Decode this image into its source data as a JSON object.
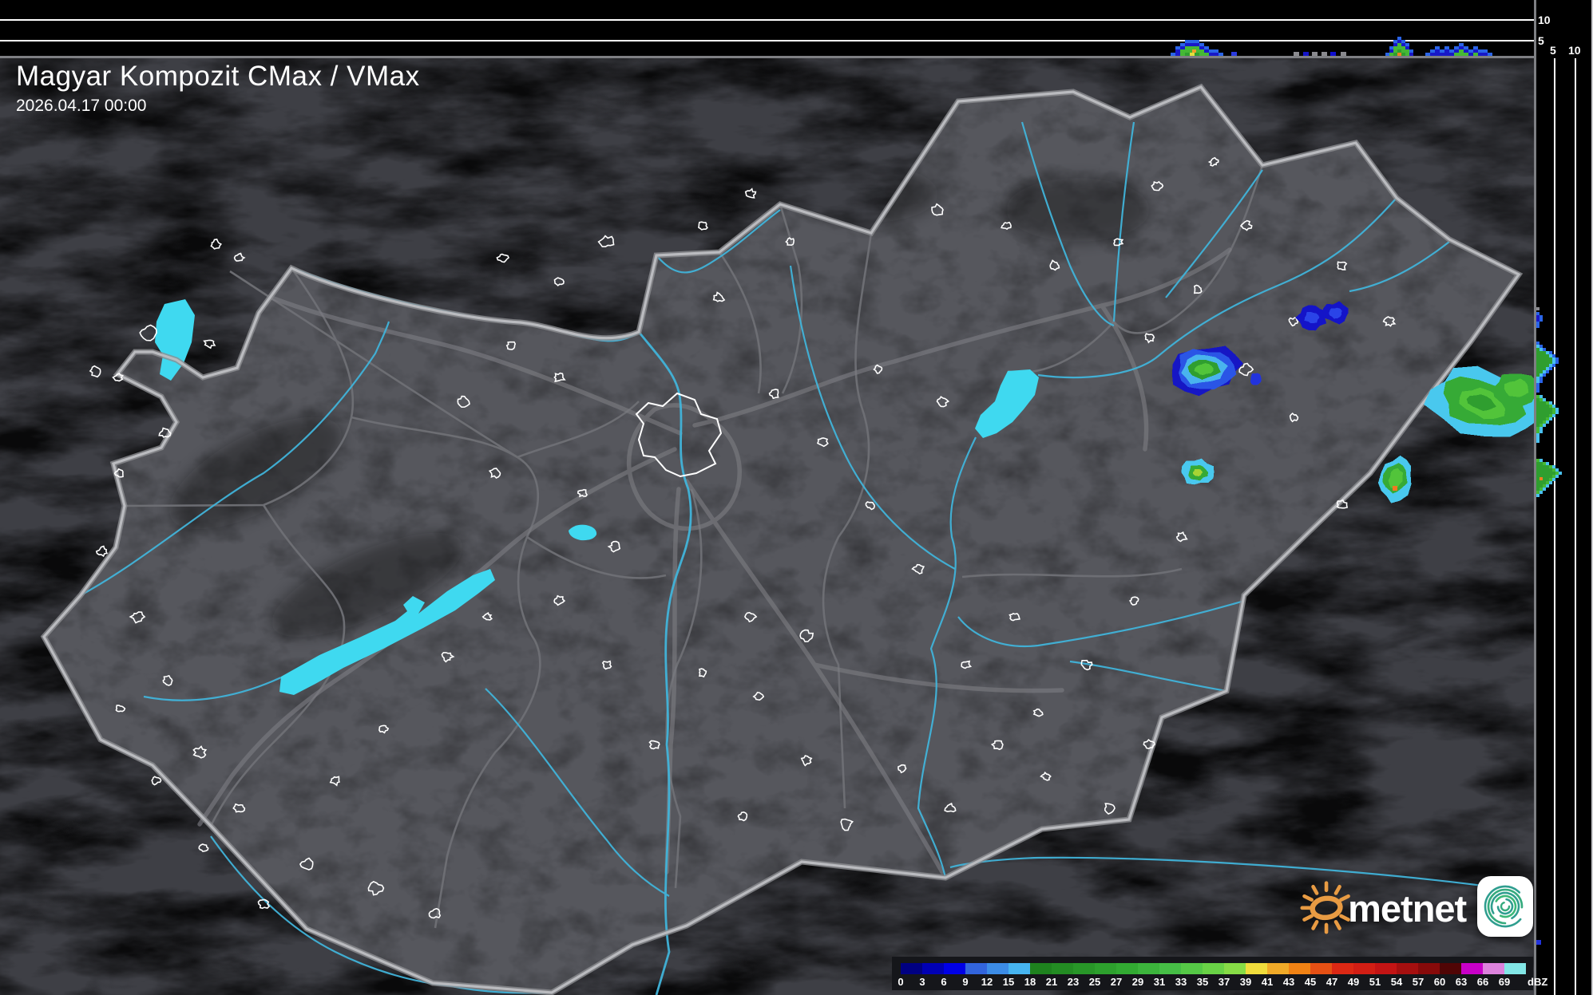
{
  "header": {
    "title": "Magyar Kompozit CMax / VMax",
    "timestamp": "2026.04.17 00:00"
  },
  "colorbar": {
    "unit": "dBZ",
    "ticks": [
      "0",
      "3",
      "6",
      "9",
      "12",
      "15",
      "18",
      "21",
      "23",
      "25",
      "27",
      "29",
      "31",
      "33",
      "35",
      "37",
      "39",
      "41",
      "43",
      "45",
      "47",
      "49",
      "51",
      "54",
      "57",
      "60",
      "63",
      "66",
      "69"
    ],
    "colors": [
      "#000082",
      "#0000b4",
      "#0000e6",
      "#3264dc",
      "#3c8ce6",
      "#46b4f0",
      "#1e821e",
      "#238c23",
      "#289628",
      "#2da02d",
      "#32aa32",
      "#3cb43c",
      "#46be46",
      "#55c846",
      "#69d246",
      "#87dc46",
      "#f0dc3c",
      "#f0aa28",
      "#f08214",
      "#e65014",
      "#dc2814",
      "#d21e14",
      "#c31414",
      "#a50f0f",
      "#870a0a",
      "#500505",
      "#c800c8",
      "#dc82dc",
      "#82e6e6"
    ]
  },
  "profile_axes": {
    "top_height_labels": [
      "10",
      "5"
    ],
    "right_height_labels": [
      "5",
      "10"
    ]
  },
  "logo": {
    "text": "metnet"
  },
  "map": {
    "accent_river": "#41b4da",
    "accent_lake": "#3fd9f0",
    "border_color": "#b2b3b7"
  }
}
